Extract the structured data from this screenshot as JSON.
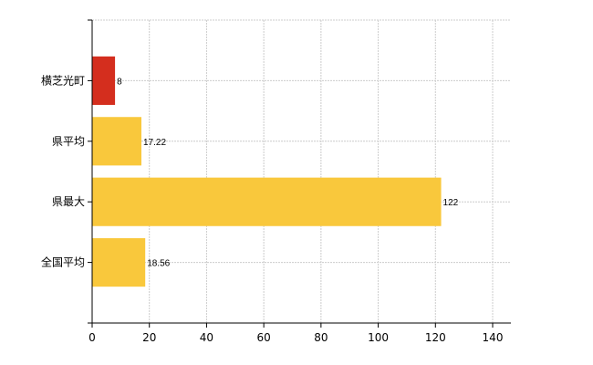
{
  "chart_data": {
    "type": "bar",
    "orientation": "horizontal",
    "categories": [
      "横芝光町",
      "県平均",
      "県最大",
      "全国平均"
    ],
    "values": [
      8,
      17.22,
      122,
      18.56
    ],
    "data_labels": [
      "8",
      "17.22",
      "122",
      "18.56"
    ],
    "bar_colors": [
      "#d42e1e",
      "#f9c83c",
      "#f9c83c",
      "#f9c83c"
    ],
    "xlim": [
      0,
      140
    ],
    "x_ticks": [
      0,
      20,
      40,
      60,
      80,
      100,
      120,
      140
    ],
    "grid": true,
    "legend": "none",
    "title": "",
    "xlabel": "",
    "ylabel": ""
  }
}
